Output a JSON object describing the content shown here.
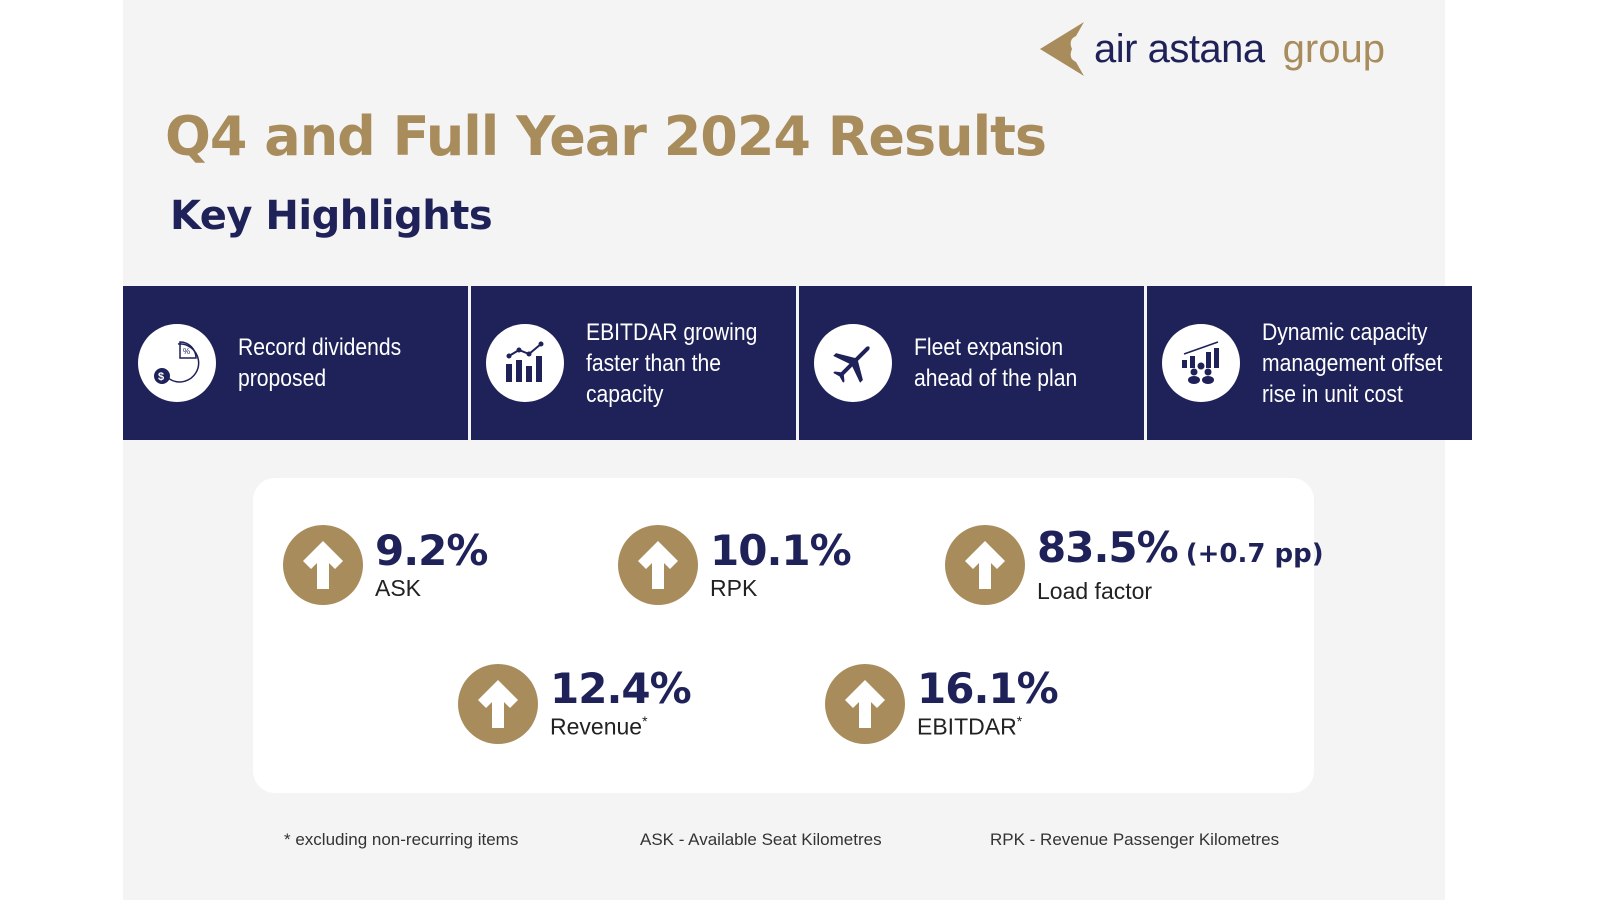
{
  "logo": {
    "text_primary": "air astana",
    "text_secondary": "group"
  },
  "title": "Q4 and Full Year 2024 Results",
  "subtitle": "Key Highlights",
  "highlights": [
    {
      "icon": "dividends-pie-dollar-icon",
      "text": "Record dividends proposed"
    },
    {
      "icon": "bar-chart-growth-icon",
      "text": "EBITDAR growing faster than the capacity"
    },
    {
      "icon": "airplane-icon",
      "text": "Fleet expansion ahead of the plan"
    },
    {
      "icon": "capacity-people-chart-icon",
      "text": "Dynamic capacity management offset rise in unit cost"
    }
  ],
  "kpis": [
    {
      "value": "9.2%",
      "label": "ASK",
      "note": ""
    },
    {
      "value": "10.1%",
      "label": "RPK",
      "note": ""
    },
    {
      "value": "83.5%",
      "extra": "(+0.7 pp)",
      "label": "Load factor",
      "note": ""
    },
    {
      "value": "12.4%",
      "label": "Revenue",
      "note": "*"
    },
    {
      "value": "16.1%",
      "label": "EBITDAR",
      "note": "*"
    }
  ],
  "footnotes": [
    "* excluding non-recurring items",
    "ASK - Available Seat Kilometres",
    "RPK - Revenue Passenger Kilometres"
  ],
  "colors": {
    "navy": "#1f2159",
    "gold": "#a88c5c",
    "background": "#f4f4f4"
  }
}
